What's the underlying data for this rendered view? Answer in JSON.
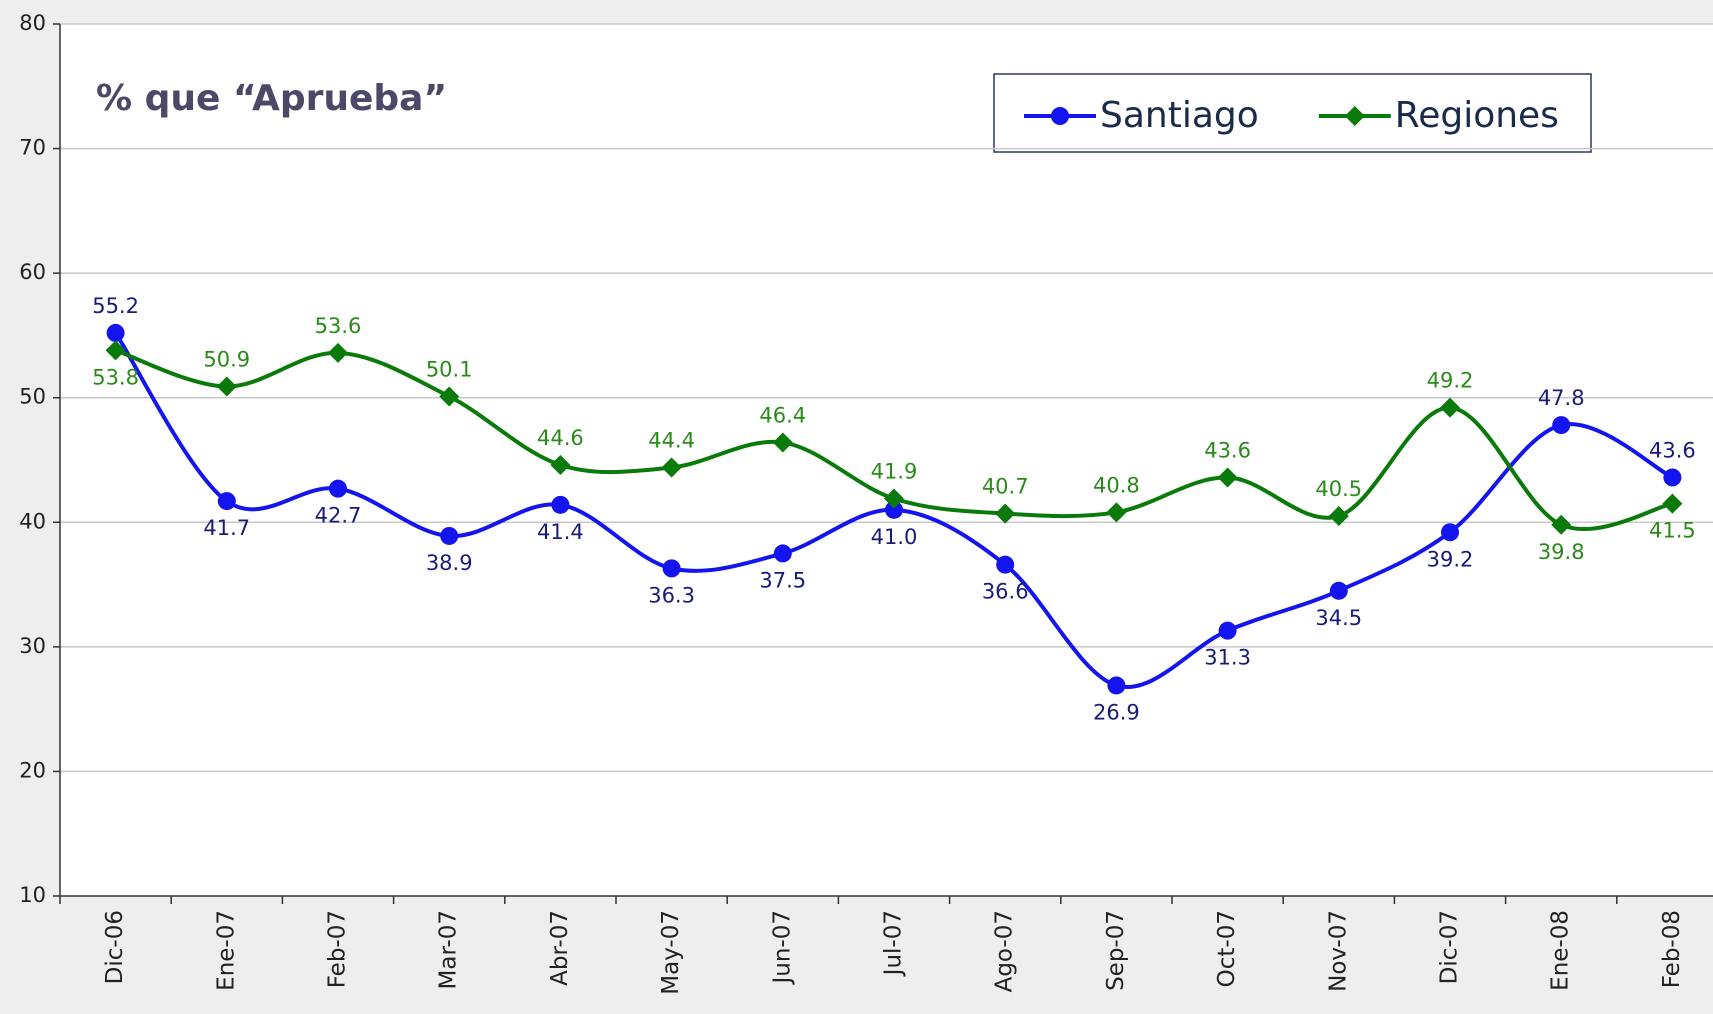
{
  "chart_data": {
    "type": "line",
    "title": "% que “Aprueba”",
    "categories": [
      "Dic-06",
      "Ene-07",
      "Feb-07",
      "Mar-07",
      "Abr-07",
      "May-07",
      "Jun-07",
      "Jul-07",
      "Ago-07",
      "Sep-07",
      "Oct-07",
      "Nov-07",
      "Dic-07",
      "Ene-08",
      "Feb-08"
    ],
    "series": [
      {
        "name": "Santiago",
        "color": "#1414ee",
        "label_color": "#1a1a78",
        "values": [
          55.2,
          41.7,
          42.7,
          38.9,
          41.4,
          36.3,
          37.5,
          41.0,
          36.6,
          26.9,
          31.3,
          34.5,
          39.2,
          47.8,
          43.6
        ],
        "value_labels": [
          "55.2",
          "41.7",
          "42.7",
          "38.9",
          "41.4",
          "36.3",
          "37.5",
          "41.0",
          "36.6",
          "26.9",
          "31.3",
          "34.5",
          "39.2",
          "47.8",
          "43.6"
        ]
      },
      {
        "name": "Regiones",
        "color": "#0a7a0a",
        "label_color": "#2a8a1a",
        "values": [
          53.8,
          50.9,
          53.6,
          50.1,
          44.6,
          44.4,
          46.4,
          41.9,
          40.7,
          40.8,
          43.6,
          40.5,
          49.2,
          39.8,
          41.5
        ],
        "value_labels": [
          "53.8",
          "50.9",
          "53.6",
          "50.1",
          "44.6",
          "44.4",
          "46.4",
          "41.9",
          "40.7",
          "40.8",
          "43.6",
          "40.5",
          "49.2",
          "39.8",
          "41.5"
        ]
      }
    ],
    "ylim": [
      10,
      80
    ],
    "yticks": [
      10,
      20,
      30,
      40,
      50,
      60,
      70,
      80
    ],
    "grid": true,
    "legend": "upper right"
  }
}
